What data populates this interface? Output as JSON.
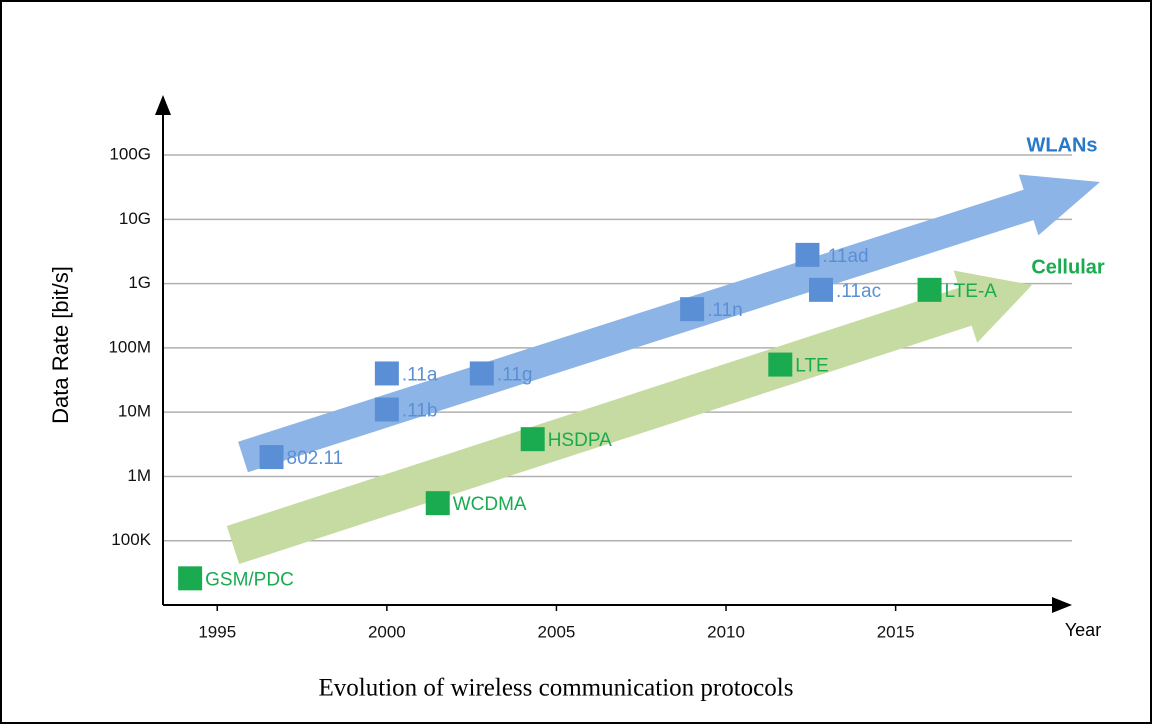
{
  "chart_data": {
    "type": "scatter",
    "x_label": "Year",
    "y_label": "Data Rate [bit/s]",
    "caption": "Evolution of wireless communication protocols",
    "log_y": true,
    "grid": true,
    "xlim": [
      1993.4,
      2020.2
    ],
    "xticks": [
      1995,
      2000,
      2005,
      2010,
      2015
    ],
    "ylim": [
      10000,
      800000000000
    ],
    "yticks": [
      {
        "value": 100000,
        "label": "100K"
      },
      {
        "value": 1000000,
        "label": "1M"
      },
      {
        "value": 10000000,
        "label": "10M"
      },
      {
        "value": 100000000,
        "label": "100M"
      },
      {
        "value": 1000000000,
        "label": "1G"
      },
      {
        "value": 10000000000,
        "label": "10G"
      },
      {
        "value": 100000000000,
        "label": "100G"
      }
    ],
    "series": [
      {
        "name": "WLANs",
        "color": "#5a8fd6",
        "point_labels": [
          "802.11",
          ".11a",
          ".11b",
          ".11g",
          ".11n",
          ".11ad",
          ".11ac"
        ],
        "x": [
          1996.6,
          2000,
          2000,
          2002.8,
          2009,
          2012.4,
          2012.8
        ],
        "values": [
          2000000,
          40000000,
          11000000,
          40000000,
          400000000,
          2800000000,
          800000000
        ]
      },
      {
        "name": "Cellular",
        "color": "#1aab50",
        "point_labels": [
          "GSM/PDC",
          "WCDMA",
          "HSDPA",
          "LTE",
          "LTE-A"
        ],
        "x": [
          1994.2,
          2001.5,
          2004.3,
          2011.6,
          2016
        ],
        "values": [
          26000,
          384000,
          3800000,
          55000000,
          800000000
        ]
      }
    ]
  }
}
